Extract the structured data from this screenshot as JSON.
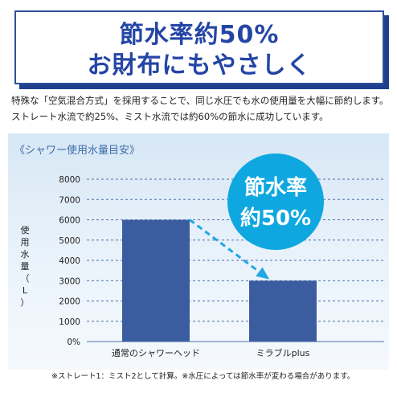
{
  "banner": {
    "line1": "節水率約50%",
    "line2": "お財布にもやさしく"
  },
  "description": {
    "line1": "特殊な「空気混合方式」を採用することで、同じ水圧でも水の使用量を大幅に節約します。",
    "line2": "ストレート水流で約25%、ミスト水流では約60%の節水に成功しています。"
  },
  "badge": {
    "line1": "節水率",
    "line2": "約50%",
    "color": "#0fa7e0"
  },
  "footnote": "※ストレート1：ミスト2として計算。※水圧によっては節水率が変わる場合があります。",
  "chart_data": {
    "type": "bar",
    "title": "《シャワー使用水量目安》",
    "ylabel": "使用水量（L）",
    "xlabel": "",
    "categories": [
      "通常のシャワーヘッド",
      "ミラブルplus"
    ],
    "values": [
      6000,
      3000
    ],
    "ylim": [
      0,
      8000
    ],
    "yticks": [
      "0%",
      "1000",
      "2000",
      "3000",
      "4000",
      "5000",
      "6000",
      "7000",
      "8000"
    ],
    "grid": true,
    "bar_color": "#3b5d9f",
    "arrow_color": "#20a8e0"
  }
}
